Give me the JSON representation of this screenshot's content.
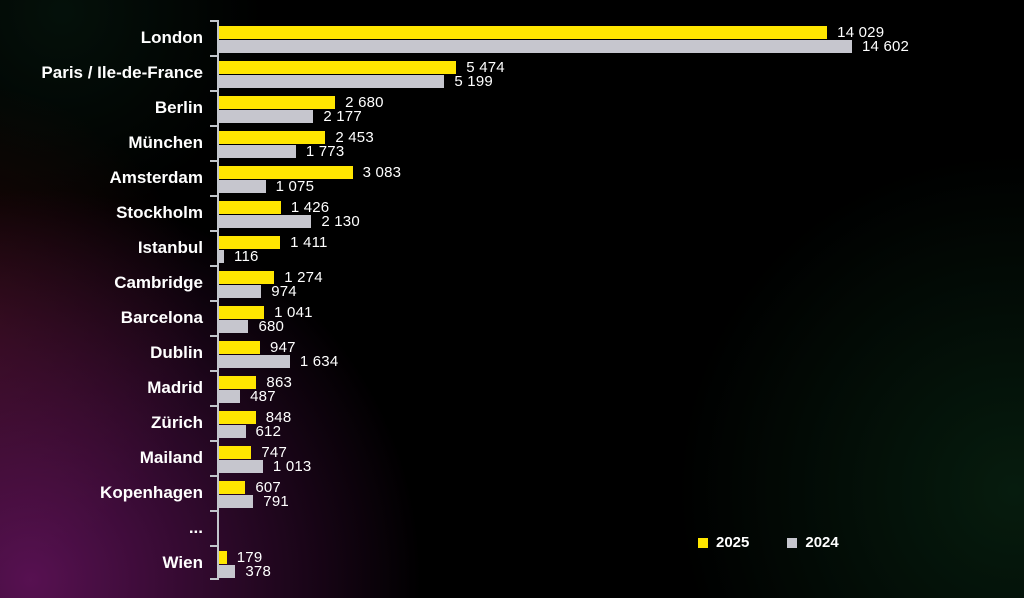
{
  "chart_data": {
    "type": "bar",
    "orientation": "horizontal",
    "title": "",
    "xlabel": "",
    "ylabel": "",
    "axis_max": 14602,
    "grid": false,
    "legend_position": "bottom-right",
    "categories": [
      "London",
      "Paris / Ile-de-France",
      "Berlin",
      "München",
      "Amsterdam",
      "Stockholm",
      "Istanbul",
      "Cambridge",
      "Barcelona",
      "Dublin",
      "Madrid",
      "Zürich",
      "Mailand",
      "Kopenhagen",
      "...",
      "Wien"
    ],
    "series": [
      {
        "name": "2025",
        "color": "#FFE600",
        "values": [
          14029,
          5474,
          2680,
          2453,
          3083,
          1426,
          1411,
          1274,
          1041,
          947,
          863,
          848,
          747,
          607,
          null,
          179
        ],
        "labels": [
          "14 029",
          "5 474",
          "2 680",
          "2 453",
          "3 083",
          "1 426",
          "1 411",
          "1 274",
          "1 041",
          "947",
          "863",
          "848",
          "747",
          "607",
          "",
          "179"
        ]
      },
      {
        "name": "2024",
        "color": "#C6C6CE",
        "values": [
          14602,
          5199,
          2177,
          1773,
          1075,
          2130,
          116,
          974,
          680,
          1634,
          487,
          612,
          1013,
          791,
          null,
          378
        ],
        "labels": [
          "14 602",
          "5 199",
          "2 177",
          "1 773",
          "1 075",
          "2 130",
          "116",
          "974",
          "680",
          "1 634",
          "487",
          "612",
          "1 013",
          "791",
          "",
          "378"
        ]
      }
    ],
    "legend": [
      {
        "label": "2025",
        "color": "#FFE600"
      },
      {
        "label": "2024",
        "color": "#C6C6CE"
      }
    ],
    "colors": {
      "axis": "#c2c6cc",
      "text": "#ffffff",
      "background": "#000000"
    }
  }
}
